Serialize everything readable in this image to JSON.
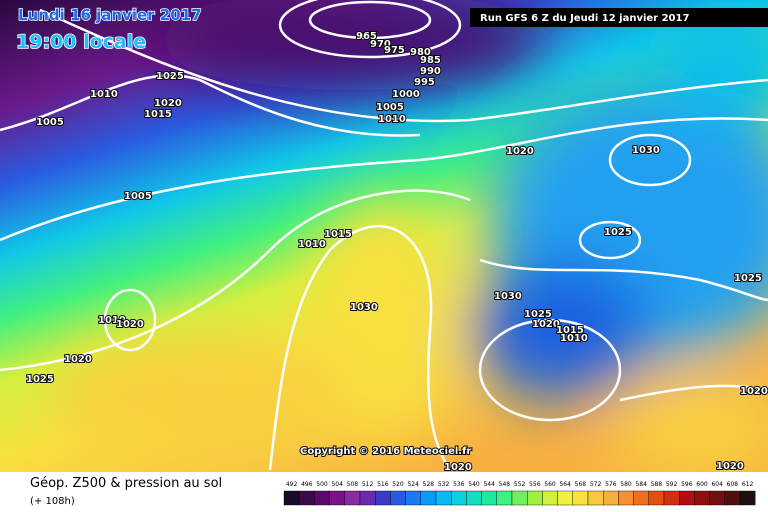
{
  "header": {
    "date": "Lundi 16 janvier 2017",
    "time": "19:00 locale",
    "run": "Run GFS 6 Z du Jeudi 12 janvier 2017"
  },
  "copyright": "Copyright © 2016 Meteociel.fr",
  "caption": {
    "title": "Géop. Z500 & pression au sol",
    "lead": "(+ 108h)"
  },
  "isobar_labels": [
    "965",
    "970",
    "975",
    "980",
    "985",
    "990",
    "995",
    "1000",
    "1005",
    "1010",
    "1025",
    "1020",
    "1015",
    "1010",
    "1005",
    "1005",
    "1020",
    "1030",
    "1025",
    "1010",
    "1015",
    "1030",
    "1010",
    "1020",
    "1020",
    "1025",
    "1030",
    "1025",
    "1020",
    "1015",
    "1010",
    "1025",
    "1020",
    "1020",
    "1020"
  ],
  "colorbar": {
    "labels": [
      "492",
      "496",
      "500",
      "504",
      "508",
      "512",
      "516",
      "520",
      "524",
      "528",
      "532",
      "536",
      "540",
      "544",
      "548",
      "552",
      "556",
      "560",
      "564",
      "568",
      "572",
      "576",
      "580",
      "584",
      "588",
      "592",
      "596",
      "600",
      "604",
      "608",
      "612"
    ],
    "colors": [
      "#1a0a2a",
      "#3a0a4a",
      "#5a0a6a",
      "#7a128a",
      "#8a2aa0",
      "#6a2ab0",
      "#3a3ac8",
      "#2a5ae0",
      "#1a7af0",
      "#0a9af8",
      "#0abaf0",
      "#0ad0e0",
      "#10e0c0",
      "#20e8a0",
      "#40f080",
      "#70f060",
      "#a0f040",
      "#d0f040",
      "#f0f040",
      "#f8e040",
      "#f8c840",
      "#f8b040",
      "#f89030",
      "#f07020",
      "#e05010",
      "#d03010",
      "#b01010",
      "#901010",
      "#701010",
      "#501010",
      "#201010"
    ]
  }
}
